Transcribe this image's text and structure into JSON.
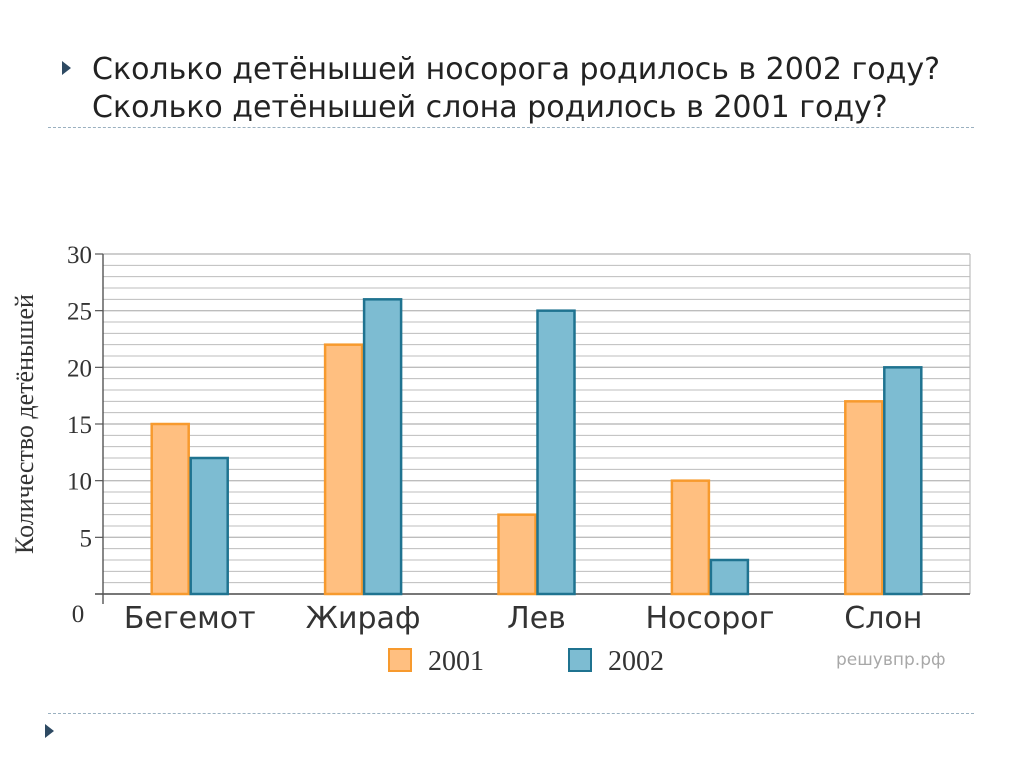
{
  "question": {
    "line1": "Сколько детёнышей носорога родилось в 2002 году?",
    "line2": "Сколько детёнышей слона родилось в 2001 году?"
  },
  "watermark": "решувпр.рф",
  "colors": {
    "series_2001_fill": "#ffbf80",
    "series_2001_stroke": "#f79a2e",
    "series_2002_fill": "#7dbcd2",
    "series_2002_stroke": "#1f7390",
    "grid": "#bdbdbd",
    "bullet": "#2e4a63"
  },
  "chart_data": {
    "type": "bar",
    "title": "",
    "xlabel": "",
    "ylabel": "Количество детёнышей",
    "categories": [
      "Бегемот",
      "Жираф",
      "Лев",
      "Носорог",
      "Слон"
    ],
    "series": [
      {
        "name": "2001",
        "values": [
          15,
          22,
          7,
          10,
          17
        ]
      },
      {
        "name": "2002",
        "values": [
          12,
          26,
          25,
          3,
          20
        ]
      }
    ],
    "ylim": [
      0,
      30
    ],
    "yticks": [
      0,
      5,
      10,
      15,
      20,
      25,
      30
    ],
    "minor_grid_step": 1,
    "grid": true,
    "legend": "bottom"
  }
}
